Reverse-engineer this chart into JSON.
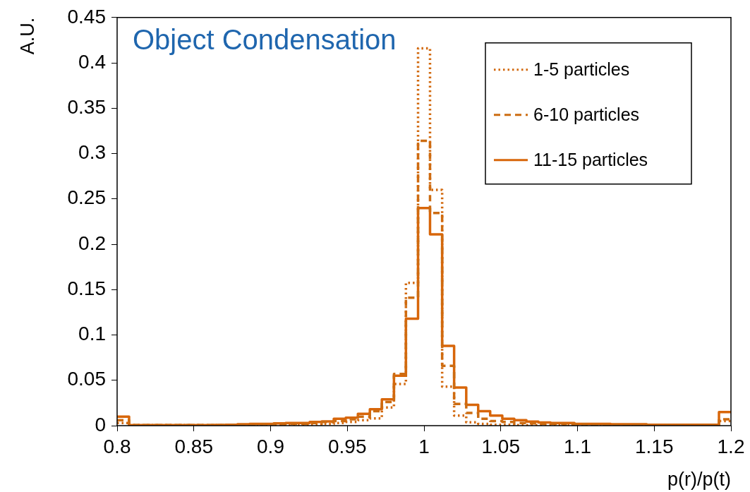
{
  "chart_data": {
    "type": "histogram",
    "title": "Object Condensation",
    "xlabel": "p(r)/p(t)",
    "ylabel": "A.U.",
    "bins": [
      0.8,
      0.8078,
      0.8157,
      0.8235,
      0.8314,
      0.8392,
      0.8471,
      0.8549,
      0.8627,
      0.8706,
      0.8784,
      0.8863,
      0.8941,
      0.902,
      0.9098,
      0.9176,
      0.9255,
      0.9333,
      0.9412,
      0.949,
      0.9569,
      0.9647,
      0.9725,
      0.9804,
      0.9882,
      0.9961,
      1.0039,
      1.0118,
      1.0196,
      1.0275,
      1.0353,
      1.0431,
      1.051,
      1.0588,
      1.0667,
      1.0745,
      1.0824,
      1.0902,
      1.098,
      1.1059,
      1.1137,
      1.1216,
      1.1294,
      1.1373,
      1.1451,
      1.1529,
      1.1608,
      1.1686,
      1.1765,
      1.1843,
      1.1922,
      1.2
    ],
    "series": [
      {
        "name": "1-5 particles",
        "color": "#d2690e",
        "line_style": "dotted",
        "values": [
          0.003,
          0.0005,
          0.0005,
          0.0005,
          0.0005,
          0.0005,
          0.0005,
          0.0005,
          0.0005,
          0.0005,
          0.0005,
          0.001,
          0.001,
          0.001,
          0.001,
          0.001,
          0.0015,
          0.002,
          0.003,
          0.004,
          0.006,
          0.008,
          0.02,
          0.046,
          0.1575,
          0.416,
          0.26,
          0.043,
          0.011,
          0.0036,
          0.002,
          0.001,
          0.001,
          0.0005,
          0.0005,
          0.0005,
          0.0005,
          0.0005,
          0.0005,
          0.0005,
          0.0005,
          0.0005,
          0.0005,
          0.0005,
          0.0005,
          0.0005,
          0.0005,
          0.0005,
          0.0005,
          0.0005,
          0.005
        ]
      },
      {
        "name": "6-10 particles",
        "color": "#cc6c12",
        "line_style": "dashed",
        "values": [
          0.006,
          0.0005,
          0.0005,
          0.0005,
          0.0005,
          0.0005,
          0.0005,
          0.0005,
          0.0005,
          0.0005,
          0.001,
          0.001,
          0.0015,
          0.0015,
          0.002,
          0.002,
          0.003,
          0.004,
          0.005,
          0.007,
          0.01,
          0.016,
          0.026,
          0.057,
          0.141,
          0.314,
          0.2345,
          0.066,
          0.024,
          0.014,
          0.0075,
          0.005,
          0.004,
          0.003,
          0.0025,
          0.002,
          0.002,
          0.0015,
          0.0015,
          0.001,
          0.001,
          0.001,
          0.001,
          0.001,
          0.0005,
          0.0005,
          0.0005,
          0.0005,
          0.0005,
          0.0005,
          0.007
        ]
      },
      {
        "name": "11-15 particles",
        "color": "#d8660a",
        "line_style": "solid",
        "values": [
          0.01,
          0.0005,
          0.0005,
          0.0005,
          0.0005,
          0.0005,
          0.0005,
          0.0005,
          0.0008,
          0.001,
          0.0015,
          0.002,
          0.002,
          0.0025,
          0.003,
          0.003,
          0.004,
          0.0047,
          0.0075,
          0.0087,
          0.013,
          0.018,
          0.029,
          0.055,
          0.118,
          0.24,
          0.211,
          0.088,
          0.042,
          0.023,
          0.016,
          0.011,
          0.0075,
          0.006,
          0.0045,
          0.0035,
          0.003,
          0.003,
          0.002,
          0.002,
          0.002,
          0.0015,
          0.0015,
          0.0015,
          0.001,
          0.001,
          0.001,
          0.001,
          0.001,
          0.001,
          0.015
        ]
      }
    ],
    "xlim": [
      0.8,
      1.2
    ],
    "xticks": [
      0.8,
      0.85,
      0.9,
      0.95,
      1,
      1.05,
      1.1,
      1.15,
      1.2
    ],
    "ylim": [
      0,
      0.45
    ],
    "yticks": [
      0,
      0.05,
      0.1,
      0.15,
      0.2,
      0.25,
      0.3,
      0.35,
      0.4,
      0.45
    ],
    "grid": false,
    "legend": "top right"
  }
}
